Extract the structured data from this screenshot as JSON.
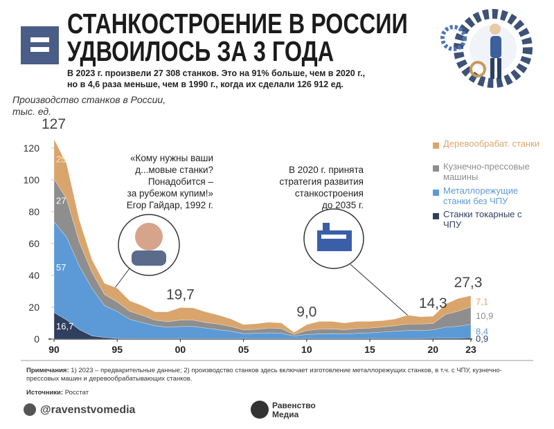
{
  "header": {
    "title": "СТАНКОСТРОЕНИЕ В РОССИИ\nУДВОИЛОСЬ ЗА 3 ГОДА",
    "subtitle": "В 2023 г. произвели 27 308 станков. Это на 91% больше, чем в 2020 г.,\nно в 4,6 раза меньше, чем в 1990 г., когда их сделали 126 912 ед."
  },
  "chart_data": {
    "type": "stacked_area",
    "y_label": "Производство станков в России,\nтыс. ед.",
    "x": [
      1990,
      1991,
      1992,
      1993,
      1994,
      1995,
      1996,
      1997,
      1998,
      1999,
      2000,
      2001,
      2002,
      2003,
      2004,
      2005,
      2006,
      2007,
      2008,
      2009,
      2010,
      2011,
      2012,
      2013,
      2014,
      2015,
      2016,
      2017,
      2018,
      2019,
      2020,
      2021,
      2022,
      2023
    ],
    "xlim": [
      1990,
      2023
    ],
    "xticks": [
      {
        "value": 1990,
        "label": "90"
      },
      {
        "value": 1995,
        "label": "95"
      },
      {
        "value": 2000,
        "label": "00"
      },
      {
        "value": 2005,
        "label": "05"
      },
      {
        "value": 2010,
        "label": "10"
      },
      {
        "value": 2015,
        "label": "15"
      },
      {
        "value": 2020,
        "label": "20"
      },
      {
        "value": 2023,
        "label": "23"
      }
    ],
    "ylim": [
      0,
      130
    ],
    "yticks": [
      0,
      20,
      40,
      60,
      80,
      100,
      120
    ],
    "grid": false,
    "legend": "right",
    "series": [
      {
        "name": "Станки токарные с ЧПУ",
        "color": "#2f3f5e",
        "values": [
          16.7,
          12,
          6,
          2,
          1,
          0.4,
          0.4,
          0.4,
          0.4,
          0.4,
          0.4,
          0.4,
          0.4,
          0.4,
          0.4,
          0.4,
          0.4,
          0.4,
          0.4,
          0.4,
          0.4,
          0.4,
          0.4,
          0.4,
          0.4,
          0.4,
          0.4,
          0.4,
          0.4,
          0.4,
          0.5,
          0.5,
          0.5,
          0.9
        ],
        "value_labels": [
          "16,7",
          null,
          null,
          null,
          null,
          null,
          null,
          null,
          null,
          null,
          null,
          null,
          null,
          null,
          null,
          null,
          null,
          null,
          null,
          null,
          null,
          null,
          null,
          null,
          null,
          null,
          null,
          null,
          null,
          null,
          null,
          null,
          null,
          "0,9"
        ]
      },
      {
        "name": "Металлорежущие станки без ЧПУ",
        "color": "#5b9ad6",
        "values": [
          57,
          52,
          40,
          30,
          20,
          17,
          12,
          10,
          8,
          7,
          7.5,
          7.5,
          6.5,
          5.5,
          4.5,
          3,
          3.2,
          3.5,
          3.2,
          1.5,
          2.5,
          2.8,
          3,
          2.8,
          3.2,
          3.5,
          4,
          4.5,
          5,
          5,
          5.3,
          7,
          7.5,
          8.4
        ],
        "value_labels": [
          "57",
          null,
          null,
          null,
          null,
          null,
          null,
          null,
          null,
          null,
          null,
          null,
          null,
          null,
          null,
          null,
          null,
          null,
          null,
          null,
          null,
          null,
          null,
          null,
          null,
          null,
          null,
          null,
          null,
          null,
          null,
          null,
          null,
          "8,4"
        ]
      },
      {
        "name": "Кузнечно-прессовые машины",
        "color": "#8e8e8e",
        "values": [
          27,
          24,
          15,
          10,
          7,
          6,
          5,
          4.5,
          3.5,
          3.5,
          4,
          4,
          3.5,
          3.5,
          3,
          2.5,
          2.5,
          3,
          3,
          1,
          2.5,
          3,
          3,
          2.7,
          3,
          3,
          3.2,
          3.5,
          4,
          4,
          4,
          8,
          9.5,
          10.9
        ],
        "value_labels": [
          "27",
          null,
          null,
          null,
          null,
          null,
          null,
          null,
          null,
          null,
          null,
          null,
          null,
          null,
          null,
          null,
          null,
          null,
          null,
          null,
          null,
          null,
          null,
          null,
          null,
          null,
          null,
          null,
          null,
          null,
          null,
          null,
          null,
          "10,9"
        ]
      },
      {
        "name": "Деревообрабат. станки",
        "color": "#d9a56c",
        "values": [
          25,
          22,
          14,
          8,
          7,
          8.6,
          6.6,
          6.1,
          5.2,
          6.2,
          7.9,
          7.7,
          6.7,
          5.7,
          4.7,
          3.2,
          3.5,
          3.7,
          3.5,
          1.3,
          3.7,
          4.9,
          4.7,
          4.2,
          4.5,
          4.2,
          4,
          4.2,
          5.6,
          4.6,
          4.5,
          6.5,
          8,
          7.1
        ],
        "value_labels": [
          "25",
          null,
          null,
          null,
          null,
          null,
          null,
          null,
          null,
          null,
          null,
          null,
          null,
          null,
          null,
          null,
          null,
          null,
          null,
          null,
          null,
          null,
          null,
          null,
          null,
          null,
          null,
          null,
          null,
          null,
          null,
          null,
          null,
          "7,1"
        ]
      }
    ],
    "totals": {
      "x": [
        1990,
        2000,
        2010,
        2020,
        2023
      ],
      "values": [
        127,
        19.7,
        9.0,
        14.3,
        27.3
      ],
      "value_labels": [
        "127",
        "19,7",
        "9,0",
        "14,3",
        "27,3"
      ]
    },
    "annotations": [
      "«Кому нужны ваши\nд...мовые станки?\nПонадобится –\nза рубежом купим!»\nЕгор Гайдар, 1992 г.",
      "В 2020 г. принята\nстратегия развития\nстанкостроения\nдо 2035 г."
    ]
  },
  "footer": {
    "notes_label": "Примечания:",
    "notes": "1) 2023 – предварительные данные; 2) производство станков здесь включает изготовление металлорежущих станков, в т.ч. с ЧПУ, кузнечно-прессовых машин и деревообрабатывающих станков.",
    "sources_label": "Источники:",
    "sources": "Росстат",
    "channel": "@ravenstvomedia",
    "brand": "Равенство\nМедиа"
  }
}
